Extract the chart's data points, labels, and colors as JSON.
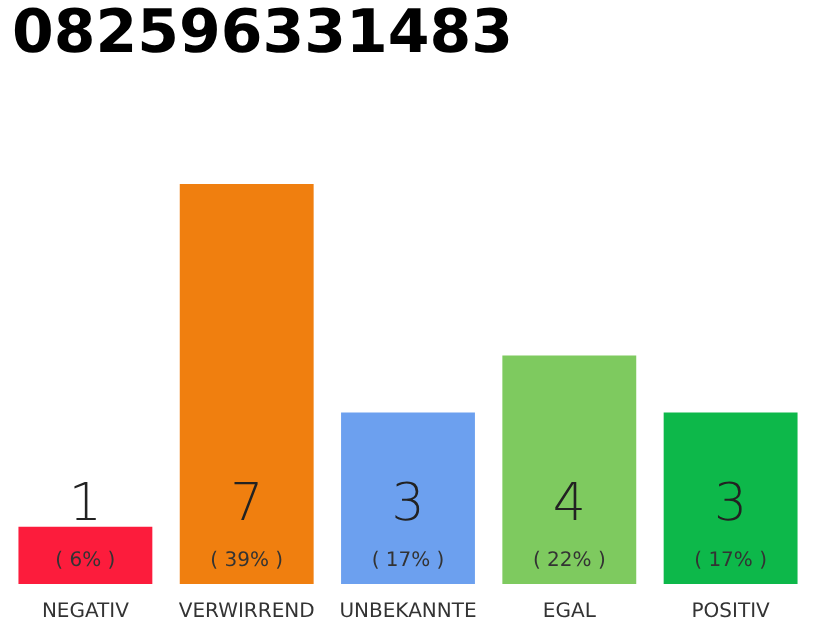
{
  "chart_data": {
    "type": "bar",
    "title": "082596331483",
    "categories": [
      "NEGATIV",
      "VERWIRREND",
      "UNBEKANNTE",
      "EGAL",
      "POSITIV"
    ],
    "values": [
      1,
      7,
      3,
      4,
      3
    ],
    "colors": [
      "#fc1c3c",
      "#f07f0f",
      "#6ca0ef",
      "#7eca5f",
      "#0db84a"
    ],
    "data_labels": true,
    "annotations": [
      "( 6% )",
      "( 39% )",
      "( 17% )",
      "( 22% )",
      "( 17% )"
    ]
  }
}
